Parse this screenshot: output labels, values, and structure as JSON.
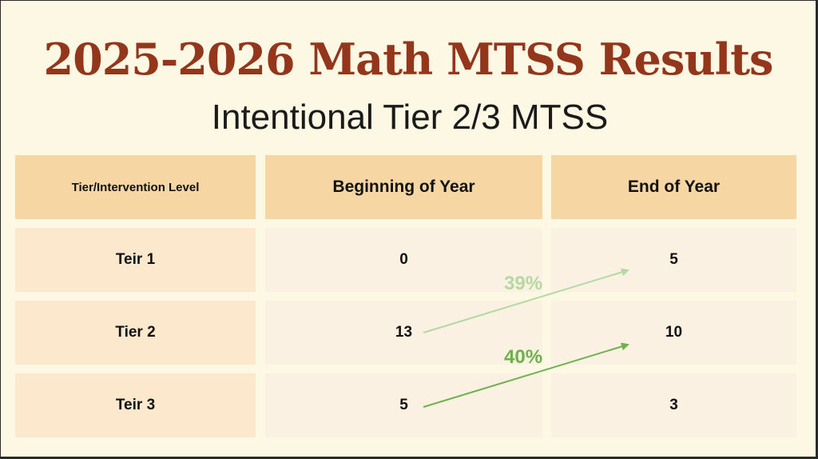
{
  "title": "2025-2026 Math MTSS Results",
  "subtitle": "Intentional Tier 2/3 MTSS",
  "table": {
    "headers": [
      "Tier/Intervention Level",
      "Beginning of Year",
      "End of Year"
    ],
    "rows": [
      {
        "level": "Teir 1",
        "beginning": "0",
        "end": "5"
      },
      {
        "level": "Tier 2",
        "beginning": "13",
        "end": "10"
      },
      {
        "level": "Teir 3",
        "beginning": "5",
        "end": "3"
      }
    ]
  },
  "annotations": [
    {
      "label": "39%",
      "color": "#b3d9a0",
      "from_row": "Tier 2",
      "to_row": "Teir 1"
    },
    {
      "label": "40%",
      "color": "#6fb04e",
      "from_row": "Teir 3",
      "to_row": "Tier 2"
    }
  ],
  "colors": {
    "title": "#93361c",
    "header_fill": "#f6d7a3",
    "background": "#fdf8e3"
  }
}
